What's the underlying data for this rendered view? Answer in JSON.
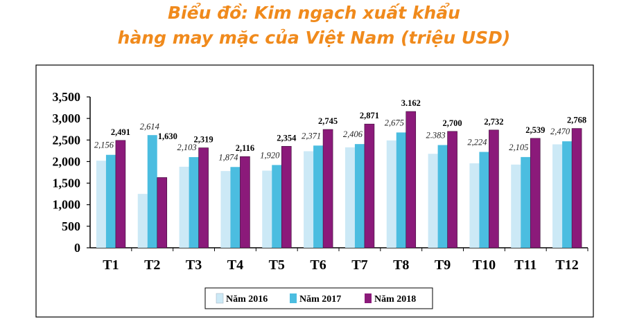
{
  "title_line1": "Biểu đồ: Kim ngạch xuất khẩu",
  "title_line2": "hàng may mặc của Việt Nam (triệu USD)",
  "chart_data": {
    "type": "bar",
    "categories": [
      "T1",
      "T2",
      "T3",
      "T4",
      "T5",
      "T6",
      "T7",
      "T8",
      "T9",
      "T10",
      "T11",
      "T12"
    ],
    "series": [
      {
        "name": "Năm 2016",
        "color": "#cce9f6",
        "values": [
          2020,
          1250,
          1880,
          1780,
          1790,
          2240,
          2330,
          2490,
          2180,
          1960,
          1930,
          2400
        ]
      },
      {
        "name": "Năm 2017",
        "color": "#4bbde0",
        "values": [
          2156,
          2614,
          2103,
          1874,
          1920,
          2371,
          2406,
          2675,
          2383,
          2224,
          2105,
          2470
        ]
      },
      {
        "name": "Năm 2018",
        "color": "#8b1a7a",
        "values": [
          2491,
          1630,
          2319,
          2116,
          2354,
          2745,
          2871,
          3162,
          2700,
          2732,
          2539,
          2768
        ]
      }
    ],
    "data_labels": [
      {
        "category": "T1",
        "y2017": "2,156",
        "y2018": "2,491"
      },
      {
        "category": "T2",
        "y2017": "2,614",
        "y2018": "1,630"
      },
      {
        "category": "T3",
        "y2017": "2,103",
        "y2018": "2,319"
      },
      {
        "category": "T4",
        "y2017": "1,874",
        "y2018": "2,116"
      },
      {
        "category": "T5",
        "y2017": "1,920",
        "y2018": "2,354"
      },
      {
        "category": "T6",
        "y2017": "2,371",
        "y2018": "2,745"
      },
      {
        "category": "T7",
        "y2017": "2,406",
        "y2018": "2,871"
      },
      {
        "category": "T8",
        "y2017": "2,675",
        "y2018": "3.162"
      },
      {
        "category": "T9",
        "y2017": "2.383",
        "y2018": "2,700"
      },
      {
        "category": "T10",
        "y2017": "2,224",
        "y2018": "2,732"
      },
      {
        "category": "T11",
        "y2017": "2,105",
        "y2018": "2,539"
      },
      {
        "category": "T12",
        "y2017": "2,470",
        "y2018": "2,768"
      }
    ],
    "yticks": [
      "0",
      "500",
      "1,000",
      "1,500",
      "2,000",
      "2,500",
      "3,000",
      "3,500"
    ],
    "ylim": [
      0,
      3500
    ],
    "grid": false,
    "legend": {
      "position": "bottom",
      "items": [
        "Năm 2016",
        "Năm 2017",
        "Năm 2018"
      ]
    }
  }
}
